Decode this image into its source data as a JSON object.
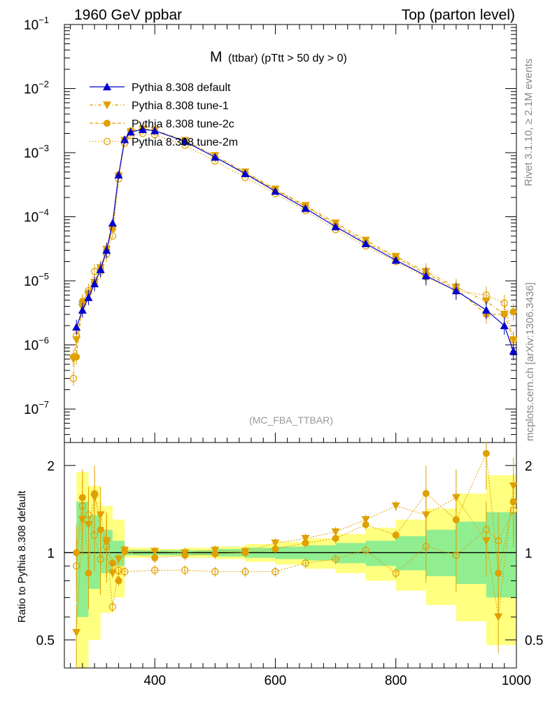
{
  "header": {
    "left": "1960 GeV ppbar",
    "right": "Top (parton level)"
  },
  "side_labels": {
    "rivet": "Rivet 3.1.10, ≥ 2.1M events",
    "source": "mcplots.cern.ch [arXiv:1306.3436]"
  },
  "colors": {
    "default": "#0000cc",
    "tune": "#e0a000",
    "band_inner": "#90ee90",
    "band_outer": "#ffff80",
    "watermark": "#999999"
  },
  "chart_data": [
    {
      "type": "line",
      "title_main": "M",
      "title_sub": "(ttbar) (pTtt > 50 dy > 0)",
      "watermark": "(MC_FBA_TTBAR)",
      "yscale": "log",
      "xlim": [
        250,
        1000
      ],
      "ylim": [
        3e-08,
        0.1
      ],
      "y_ticks": [
        {
          "value": 1e-07,
          "base": "10",
          "exp": "−7"
        },
        {
          "value": 1e-06,
          "base": "10",
          "exp": "−6"
        },
        {
          "value": 1e-05,
          "base": "10",
          "exp": "−5"
        },
        {
          "value": 0.0001,
          "base": "10",
          "exp": "−4"
        },
        {
          "value": 0.001,
          "base": "10",
          "exp": "−3"
        },
        {
          "value": 0.01,
          "base": "10",
          "exp": "−2"
        },
        {
          "value": 0.1,
          "base": "10",
          "exp": "−1"
        }
      ],
      "legend_position": "top-left",
      "series": [
        {
          "name": "Pythia 8.308 default",
          "style": "solid",
          "marker": "triangle-up",
          "x": [
            270,
            280,
            290,
            300,
            310,
            320,
            330,
            340,
            350,
            360,
            380,
            400,
            450,
            500,
            550,
            600,
            650,
            700,
            750,
            800,
            850,
            900,
            950,
            980,
            995
          ],
          "y": [
            1.9e-06,
            3.5e-06,
            5.5e-06,
            9e-06,
            1.5e-05,
            3e-05,
            8e-05,
            0.00045,
            0.0016,
            0.0021,
            0.0023,
            0.0022,
            0.0015,
            0.00085,
            0.00047,
            0.00025,
            0.000135,
            7e-05,
            3.8e-05,
            2.1e-05,
            1.2e-05,
            7e-06,
            3.5e-06,
            2e-06,
            8e-07
          ]
        },
        {
          "name": "Pythia 8.308 tune-1",
          "style": "dashdot",
          "marker": "triangle-down",
          "x": [
            265,
            270,
            280,
            290,
            300,
            310,
            320,
            330,
            340,
            350,
            360,
            380,
            400,
            450,
            500,
            550,
            600,
            650,
            700,
            750,
            800,
            850,
            900,
            950,
            980,
            995
          ],
          "y": [
            6e-07,
            1.2e-06,
            3.8e-06,
            6e-06,
            9.5e-06,
            1.6e-05,
            3.1e-05,
            6.5e-05,
            0.00043,
            0.00155,
            0.0021,
            0.00235,
            0.00225,
            0.00155,
            0.0009,
            0.0005,
            0.00027,
            0.00015,
            8e-05,
            4.3e-05,
            2.4e-05,
            1.4e-05,
            8e-06,
            4.8e-06,
            3e-06,
            1.2e-06
          ]
        },
        {
          "name": "Pythia 8.308 tune-2c",
          "style": "dashed",
          "marker": "circle-filled",
          "x": [
            265,
            270,
            280,
            290,
            300,
            310,
            320,
            330,
            340,
            350,
            360,
            380,
            400,
            450,
            500,
            550,
            600,
            650,
            700,
            750,
            800,
            850,
            900,
            950,
            980,
            995
          ],
          "y": [
            6.5e-07,
            6.5e-07,
            4.8e-06,
            6.5e-06,
            9.5e-06,
            1.55e-05,
            3e-05,
            6.5e-05,
            0.00045,
            0.0016,
            0.0022,
            0.0023,
            0.0022,
            0.0015,
            0.00085,
            0.00048,
            0.00026,
            0.000145,
            7.5e-05,
            4e-05,
            2.3e-05,
            1.3e-05,
            7.5e-06,
            3e-06,
            3e-06,
            3.3e-06
          ]
        },
        {
          "name": "Pythia 8.308 tune-2m",
          "style": "dotted",
          "marker": "circle-open",
          "x": [
            265,
            270,
            280,
            290,
            300,
            310,
            320,
            330,
            340,
            350,
            360,
            380,
            400,
            450,
            500,
            550,
            600,
            650,
            700,
            750,
            800,
            850,
            900,
            950,
            980,
            995
          ],
          "y": [
            3e-07,
            1.4e-06,
            4.5e-06,
            7e-06,
            1.4e-05,
            1.4e-05,
            2.6e-05,
            5e-05,
            0.00039,
            0.0014,
            0.00185,
            0.002,
            0.0019,
            0.0013,
            0.00074,
            0.00041,
            0.00023,
            0.000125,
            6.3e-05,
            3.5e-05,
            2e-05,
            1.15e-05,
            7e-06,
            6e-06,
            4.5e-06,
            1.2e-06
          ]
        }
      ]
    },
    {
      "type": "line",
      "ylabel": "Ratio to Pythia 8.308 default",
      "yscale": "log",
      "xlim": [
        250,
        1000
      ],
      "ylim": [
        0.4,
        2.4
      ],
      "x_ticks": [
        400,
        600,
        800,
        1000
      ],
      "y_ticks": [
        {
          "value": 0.5,
          "label": "0.5"
        },
        {
          "value": 1,
          "label": "1"
        },
        {
          "value": 2,
          "label": "2"
        }
      ],
      "band": {
        "x": [
          270,
          290,
          310,
          330,
          350,
          400,
          450,
          500,
          550,
          600,
          650,
          700,
          750,
          800,
          850,
          900,
          950,
          1000
        ],
        "inner_lo": [
          0.6,
          0.75,
          0.85,
          0.9,
          0.98,
          0.98,
          0.98,
          0.97,
          0.96,
          0.95,
          0.94,
          0.92,
          0.9,
          0.87,
          0.83,
          0.78,
          0.7,
          0.6
        ],
        "inner_hi": [
          1.5,
          1.35,
          1.2,
          1.1,
          1.02,
          1.02,
          1.02,
          1.03,
          1.04,
          1.05,
          1.06,
          1.08,
          1.1,
          1.14,
          1.2,
          1.28,
          1.38,
          1.5
        ],
        "outer_lo": [
          0.4,
          0.5,
          0.62,
          0.7,
          0.96,
          0.97,
          0.96,
          0.95,
          0.93,
          0.91,
          0.88,
          0.85,
          0.8,
          0.74,
          0.66,
          0.58,
          0.48,
          0.4
        ],
        "outer_hi": [
          1.9,
          1.7,
          1.45,
          1.3,
          1.04,
          1.03,
          1.04,
          1.05,
          1.07,
          1.09,
          1.12,
          1.16,
          1.22,
          1.3,
          1.42,
          1.6,
          1.85,
          2.3
        ]
      },
      "series": [
        {
          "name": "tune-1",
          "marker": "triangle-down",
          "x": [
            270,
            280,
            290,
            300,
            310,
            320,
            330,
            340,
            350,
            400,
            450,
            500,
            550,
            600,
            650,
            700,
            750,
            800,
            850,
            900,
            950,
            970,
            995
          ],
          "y": [
            0.53,
            1.3,
            1.25,
            1.55,
            1.35,
            1.1,
            0.85,
            0.95,
            1.02,
            1.01,
            1.0,
            1.02,
            1.01,
            1.08,
            1.12,
            1.18,
            1.3,
            1.45,
            1.35,
            1.55,
            1.1,
            0.6,
            1.7
          ]
        },
        {
          "name": "tune-2c",
          "marker": "circle-filled",
          "x": [
            270,
            280,
            290,
            300,
            310,
            320,
            330,
            340,
            350,
            400,
            450,
            500,
            550,
            600,
            650,
            700,
            750,
            800,
            850,
            900,
            950,
            970,
            995
          ],
          "y": [
            1.0,
            1.55,
            0.85,
            1.6,
            1.2,
            1.1,
            0.92,
            0.8,
            1.01,
            0.96,
            0.98,
            0.99,
            1.0,
            1.03,
            1.08,
            1.12,
            1.25,
            1.15,
            1.6,
            1.3,
            2.2,
            0.85,
            1.5
          ]
        },
        {
          "name": "tune-2m",
          "marker": "circle-open",
          "x": [
            270,
            280,
            290,
            300,
            310,
            320,
            330,
            340,
            350,
            400,
            450,
            500,
            550,
            600,
            650,
            700,
            750,
            800,
            850,
            900,
            950,
            970,
            995
          ],
          "y": [
            0.9,
            1.45,
            1.35,
            1.15,
            0.95,
            1.05,
            0.65,
            0.87,
            0.86,
            0.87,
            0.87,
            0.86,
            0.86,
            0.86,
            0.92,
            0.95,
            1.02,
            0.85,
            1.05,
            0.98,
            1.2,
            1.1,
            1.4
          ]
        }
      ]
    }
  ]
}
